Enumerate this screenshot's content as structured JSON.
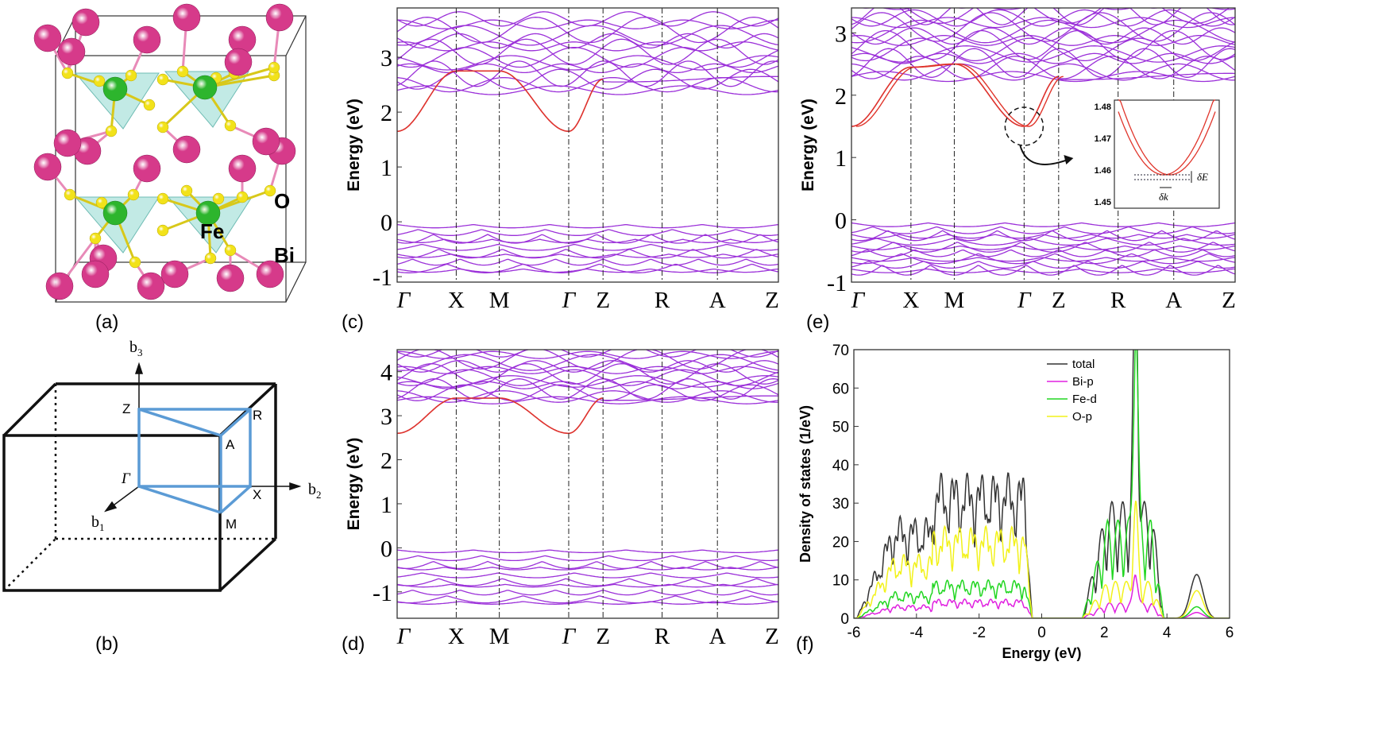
{
  "panel_labels": [
    "(a)",
    "(b)",
    "(c)",
    "(d)",
    "(e)",
    "(f)"
  ],
  "structure": {
    "atoms": {
      "o": "O",
      "fe": "Fe",
      "bi": "Bi"
    },
    "colors": {
      "bi": "#d63a8a",
      "fe": "#2db52d",
      "o": "#f2e21a",
      "poly": "#8fd8d0"
    }
  },
  "brillouin_zone": {
    "axes": {
      "b1": "b",
      "b1_sub": "1",
      "b2": "b",
      "b2_sub": "2",
      "b3": "b",
      "b3_sub": "3"
    },
    "points": {
      "gamma": "Γ",
      "z": "Z",
      "r": "R",
      "a": "A",
      "x": "X",
      "m": "M"
    },
    "path_color": "#5b9bd5"
  },
  "band_colors": {
    "band": "#9b30d9",
    "cb_min": "#e0352b"
  },
  "chart_data": [
    {
      "panel": "(c)",
      "type": "line",
      "ylabel": "Energy (eV)",
      "ylim": [
        -1.1,
        3.9
      ],
      "yticks": [
        "-1",
        "0",
        "1",
        "2",
        "3"
      ],
      "kpath": [
        "Γ",
        "X",
        "M",
        "Γ",
        "Z",
        "R",
        "A",
        "Z"
      ],
      "conduction_band_min": [
        1.65,
        2.75,
        2.75,
        1.65,
        2.6
      ]
    },
    {
      "panel": "(d)",
      "type": "line",
      "ylabel": "Energy (eV)",
      "ylim": [
        -1.6,
        4.5
      ],
      "yticks": [
        "-1",
        "0",
        "1",
        "2",
        "3",
        "4"
      ],
      "kpath": [
        "Γ",
        "X",
        "M",
        "Γ",
        "Z",
        "R",
        "A",
        "Z"
      ],
      "conduction_band_min": [
        2.6,
        3.4,
        3.4,
        2.6,
        3.4
      ]
    },
    {
      "panel": "(e)",
      "type": "line",
      "ylabel": "Energy (eV)",
      "ylim": [
        -1.0,
        3.4
      ],
      "yticks": [
        "-1",
        "0",
        "1",
        "2",
        "3"
      ],
      "kpath": [
        "Γ",
        "X",
        "M",
        "Γ",
        "Z",
        "R",
        "A",
        "Z"
      ],
      "conduction_band_min": [
        1.5,
        2.45,
        2.5,
        1.5,
        2.3
      ],
      "inset": {
        "ylim": [
          1.448,
          1.482
        ],
        "yticks": [
          "1.45",
          "1.46",
          "1.47",
          "1.48"
        ],
        "delta_e": "δE",
        "delta_k": "δk"
      }
    },
    {
      "panel": "(f)",
      "type": "line",
      "xlabel": "Energy (eV)",
      "ylabel": "Density of states (1/eV)",
      "xlim": [
        -6,
        6
      ],
      "ylim": [
        0,
        70
      ],
      "xticks": [
        "-6",
        "-4",
        "-2",
        "0",
        "2",
        "4",
        "6"
      ],
      "yticks": [
        "0",
        "10",
        "20",
        "30",
        "40",
        "50",
        "60",
        "70"
      ],
      "series": [
        {
          "name": "total",
          "color": "#333333"
        },
        {
          "name": "Bi-p",
          "color": "#e020e0"
        },
        {
          "name": "Fe-d",
          "color": "#22d622"
        },
        {
          "name": "O-p",
          "color": "#f2f21a"
        }
      ],
      "legend": "top-center"
    }
  ]
}
